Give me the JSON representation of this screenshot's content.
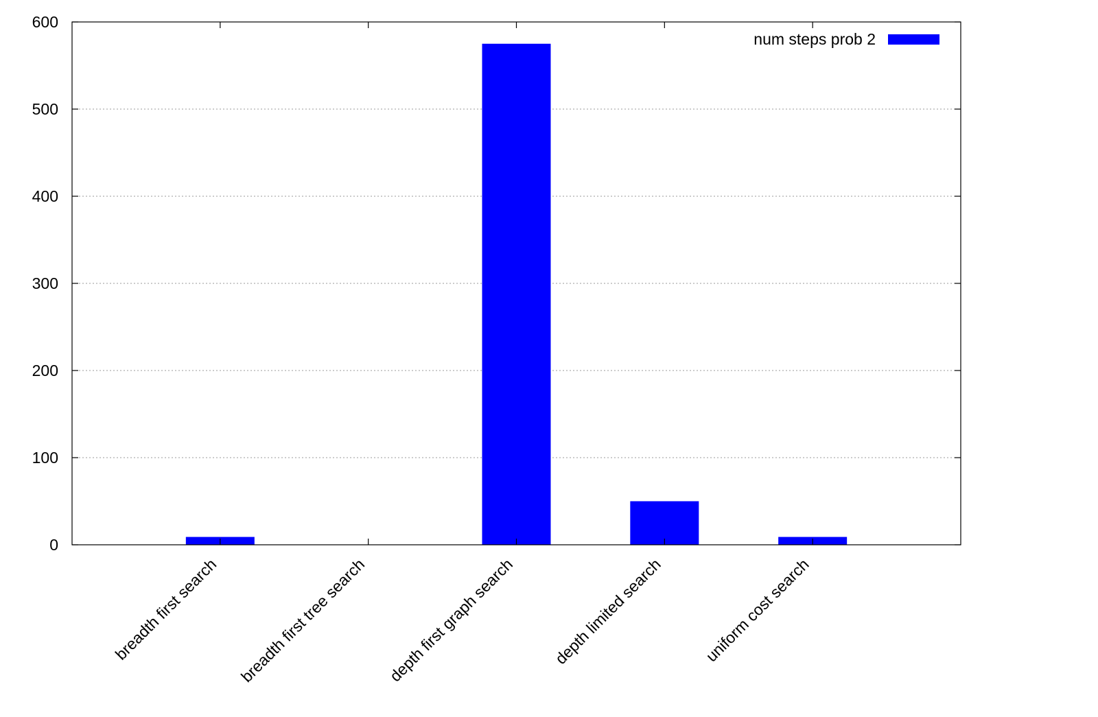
{
  "chart_data": {
    "type": "bar",
    "title": "",
    "xlabel": "",
    "ylabel": "",
    "ylim": [
      0,
      600
    ],
    "yticks": [
      0,
      100,
      200,
      300,
      400,
      500,
      600
    ],
    "ytick_labels": [
      "0",
      "100",
      "200",
      "300",
      "400",
      "500",
      "600"
    ],
    "grid": true,
    "legend_position": "top-right",
    "categories": [
      "breadth first search",
      "breadth first tree search",
      "depth first graph search",
      "depth limited search",
      "uniform cost search"
    ],
    "series": [
      {
        "name": "num steps prob 2",
        "color": "#0000ff",
        "values": [
          9,
          0,
          575,
          50,
          9
        ]
      }
    ]
  }
}
